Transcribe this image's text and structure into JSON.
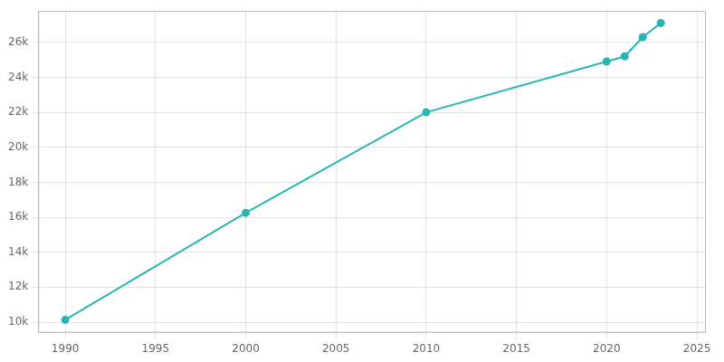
{
  "chart_data": {
    "type": "line",
    "x": [
      1990,
      2000,
      2010,
      2020,
      2021,
      2022,
      2023
    ],
    "values": [
      10135,
      16252,
      22000,
      24900,
      25200,
      26300,
      27100
    ],
    "color": "#2ab5b5",
    "marker": "circle",
    "xlim": [
      1988.5,
      2025.5
    ],
    "xticks": [
      1990,
      1995,
      2000,
      2005,
      2010,
      2015,
      2020,
      2025
    ],
    "ylim": [
      9400,
      27800
    ],
    "yticks": [
      {
        "value": 10000,
        "label": "10k"
      },
      {
        "value": 12000,
        "label": "12k"
      },
      {
        "value": 14000,
        "label": "14k"
      },
      {
        "value": 16000,
        "label": "16k"
      },
      {
        "value": 18000,
        "label": "18k"
      },
      {
        "value": 20000,
        "label": "20k"
      },
      {
        "value": 22000,
        "label": "22k"
      },
      {
        "value": 24000,
        "label": "24k"
      },
      {
        "value": 26000,
        "label": "26k"
      }
    ],
    "grid": true
  }
}
